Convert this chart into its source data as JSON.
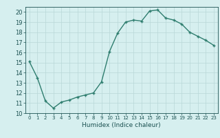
{
  "x": [
    0,
    1,
    2,
    3,
    4,
    5,
    6,
    7,
    8,
    9,
    10,
    11,
    12,
    13,
    14,
    15,
    16,
    17,
    18,
    19,
    20,
    21,
    22,
    23
  ],
  "y": [
    15.1,
    13.5,
    11.2,
    10.5,
    11.1,
    11.3,
    11.6,
    11.8,
    12.0,
    13.1,
    16.1,
    17.9,
    19.0,
    19.2,
    19.1,
    20.1,
    20.2,
    19.4,
    19.2,
    18.8,
    18.0,
    17.6,
    17.2,
    16.7
  ],
  "line_color": "#2e7d6e",
  "marker": "+",
  "marker_size": 3.0,
  "bg_color": "#d6efef",
  "grid_color": "#b8d8d8",
  "xlabel": "Humidex (Indice chaleur)",
  "ylim": [
    10,
    20.5
  ],
  "xlim": [
    -0.5,
    23.5
  ],
  "yticks": [
    10,
    11,
    12,
    13,
    14,
    15,
    16,
    17,
    18,
    19,
    20
  ],
  "xticks": [
    0,
    1,
    2,
    3,
    4,
    5,
    6,
    7,
    8,
    9,
    10,
    11,
    12,
    13,
    14,
    15,
    16,
    17,
    18,
    19,
    20,
    21,
    22,
    23
  ],
  "xlabel_color": "#1a5050",
  "tick_color": "#1a5050",
  "linewidth": 1.0,
  "tick_labelsize": 5.5,
  "xlabel_fontsize": 6.5
}
